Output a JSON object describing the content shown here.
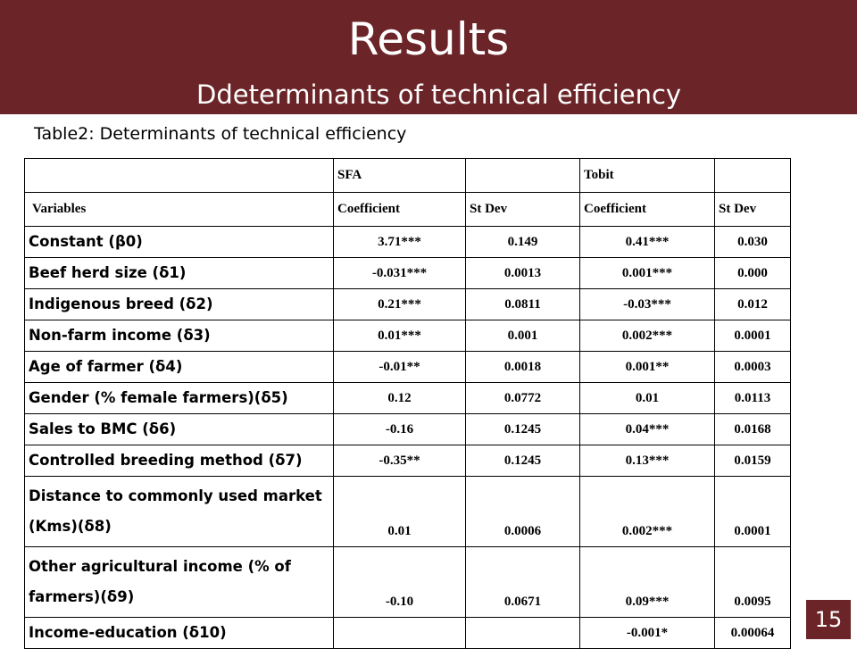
{
  "slide": {
    "title": "Results",
    "subtitle": "Ddeterminants of technical efficiency",
    "caption": "Table2: Determinants of technical efficiency",
    "page_number": "15"
  },
  "table": {
    "group_headers": [
      "",
      "SFA",
      "",
      "Tobit",
      ""
    ],
    "column_headers": [
      "Variables",
      "Coefficient",
      "St Dev",
      "Coefficient",
      "St Dev"
    ],
    "rows": [
      {
        "variable": "Constant (β0)",
        "sfa_coef": "3.71***",
        "sfa_sd": "0.149",
        "tobit_coef": "0.41***",
        "tobit_sd": "0.030"
      },
      {
        "variable": "Beef herd size (δ1)",
        "sfa_coef": "-0.031***",
        "sfa_sd": "0.0013",
        "tobit_coef": "0.001***",
        "tobit_sd": "0.000"
      },
      {
        "variable": "Indigenous breed (δ2)",
        "sfa_coef": "0.21***",
        "sfa_sd": "0.0811",
        "tobit_coef": "-0.03***",
        "tobit_sd": "0.012"
      },
      {
        "variable": "Non-farm income (δ3)",
        "sfa_coef": "0.01***",
        "sfa_sd": "0.001",
        "tobit_coef": "0.002***",
        "tobit_sd": "0.0001"
      },
      {
        "variable": "Age of farmer (δ4)",
        "sfa_coef": "-0.01**",
        "sfa_sd": "0.0018",
        "tobit_coef": "0.001**",
        "tobit_sd": "0.0003"
      },
      {
        "variable": "Gender (% female farmers)(δ5)",
        "sfa_coef": "0.12",
        "sfa_sd": "0.0772",
        "tobit_coef": "0.01",
        "tobit_sd": "0.0113"
      },
      {
        "variable": "Sales to BMC (δ6)",
        "sfa_coef": "-0.16",
        "sfa_sd": "0.1245",
        "tobit_coef": "0.04***",
        "tobit_sd": "0.0168"
      },
      {
        "variable": "Controlled breeding method (δ7)",
        "sfa_coef": "-0.35**",
        "sfa_sd": "0.1245",
        "tobit_coef": "0.13***",
        "tobit_sd": "0.0159"
      },
      {
        "variable": "Distance to commonly used market (Kms)(δ8)",
        "sfa_coef": "0.01",
        "sfa_sd": "0.0006",
        "tobit_coef": "0.002***",
        "tobit_sd": "0.0001"
      },
      {
        "variable": "Other agricultural income (% of farmers)(δ9)",
        "sfa_coef": "-0.10",
        "sfa_sd": "0.0671",
        "tobit_coef": "0.09***",
        "tobit_sd": "0.0095"
      },
      {
        "variable": "Income-education (δ10)",
        "sfa_coef": "",
        "sfa_sd": "",
        "tobit_coef": "-0.001*",
        "tobit_sd": "0.00064"
      }
    ]
  },
  "colors": {
    "header_background": "#6b2528",
    "header_text": "#ffffff"
  }
}
